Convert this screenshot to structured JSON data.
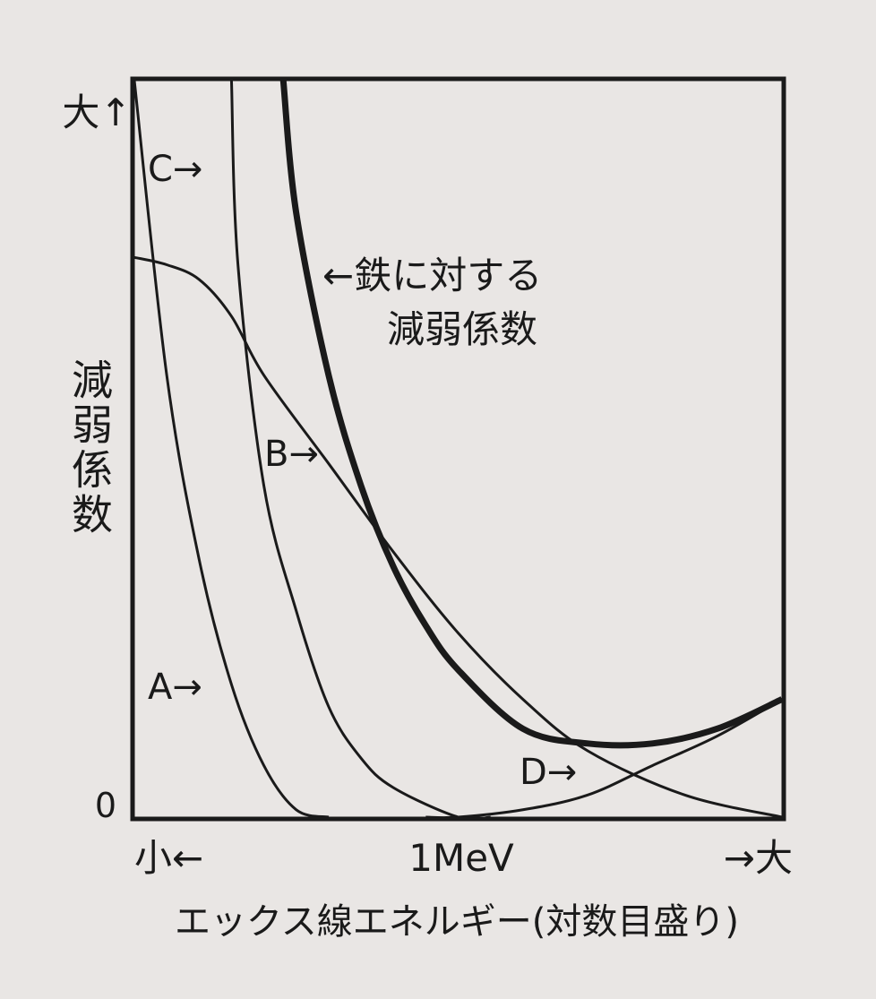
{
  "chart_data": {
    "type": "line",
    "title": "",
    "xlabel": "エックス線エネルギー(対数目盛り)",
    "ylabel": "減弱係数",
    "x_scale": "log",
    "x_tick_label": "1MeV",
    "x_low_label": "小←",
    "x_high_label": "→大",
    "y_high_label": "大↑",
    "y_zero_label": "0",
    "grid": false,
    "series": [
      {
        "name": "A",
        "label": "A→",
        "emphasis": false,
        "x": [
          0.0,
          0.05,
          0.1,
          0.15,
          0.2,
          0.25,
          0.3
        ],
        "y": [
          1.0,
          0.6,
          0.35,
          0.18,
          0.07,
          0.01,
          0.0
        ]
      },
      {
        "name": "B",
        "label": "B→",
        "emphasis": false,
        "x": [
          0.0,
          0.05,
          0.1,
          0.15,
          0.2,
          0.3,
          0.4,
          0.5,
          0.6,
          0.7,
          0.85,
          1.0
        ],
        "y": [
          0.76,
          0.75,
          0.73,
          0.68,
          0.6,
          0.48,
          0.36,
          0.25,
          0.16,
          0.09,
          0.03,
          0.0
        ]
      },
      {
        "name": "C",
        "label": "C→",
        "emphasis": false,
        "x": [
          0.15,
          0.16,
          0.2,
          0.25,
          0.3,
          0.35,
          0.4,
          0.5,
          0.55
        ],
        "y": [
          1.0,
          0.75,
          0.45,
          0.28,
          0.15,
          0.08,
          0.04,
          0.0,
          0.0
        ]
      },
      {
        "name": "D",
        "label": "D→",
        "emphasis": false,
        "x": [
          0.45,
          0.5,
          0.6,
          0.7,
          0.8,
          0.9,
          1.0
        ],
        "y": [
          0.0,
          0.0,
          0.01,
          0.03,
          0.07,
          0.11,
          0.16
        ]
      },
      {
        "name": "鉄に対する減弱係数",
        "label": "←鉄に対する減弱係数",
        "emphasis": true,
        "x": [
          0.23,
          0.25,
          0.3,
          0.35,
          0.4,
          0.45,
          0.5,
          0.6,
          0.7,
          0.8,
          0.9,
          1.0
        ],
        "y": [
          1.0,
          0.82,
          0.6,
          0.45,
          0.34,
          0.26,
          0.2,
          0.12,
          0.1,
          0.1,
          0.12,
          0.16
        ]
      }
    ]
  }
}
